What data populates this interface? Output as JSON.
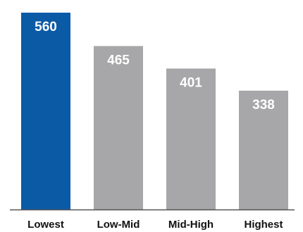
{
  "chart_data": {
    "type": "bar",
    "title": "",
    "xlabel": "",
    "ylabel": "",
    "categories": [
      "Lowest",
      "Low-Mid",
      "Mid-High",
      "Highest"
    ],
    "values": [
      560,
      465,
      401,
      338
    ],
    "value_labels": [
      "560",
      "465",
      "401",
      "338"
    ],
    "ylim": [
      0,
      600
    ],
    "grid": false,
    "legend": "none",
    "colors": {
      "highlight": "#0b5aa6",
      "default": "#a7a7a9",
      "baseline": "#555555"
    },
    "highlight_index": 0
  }
}
